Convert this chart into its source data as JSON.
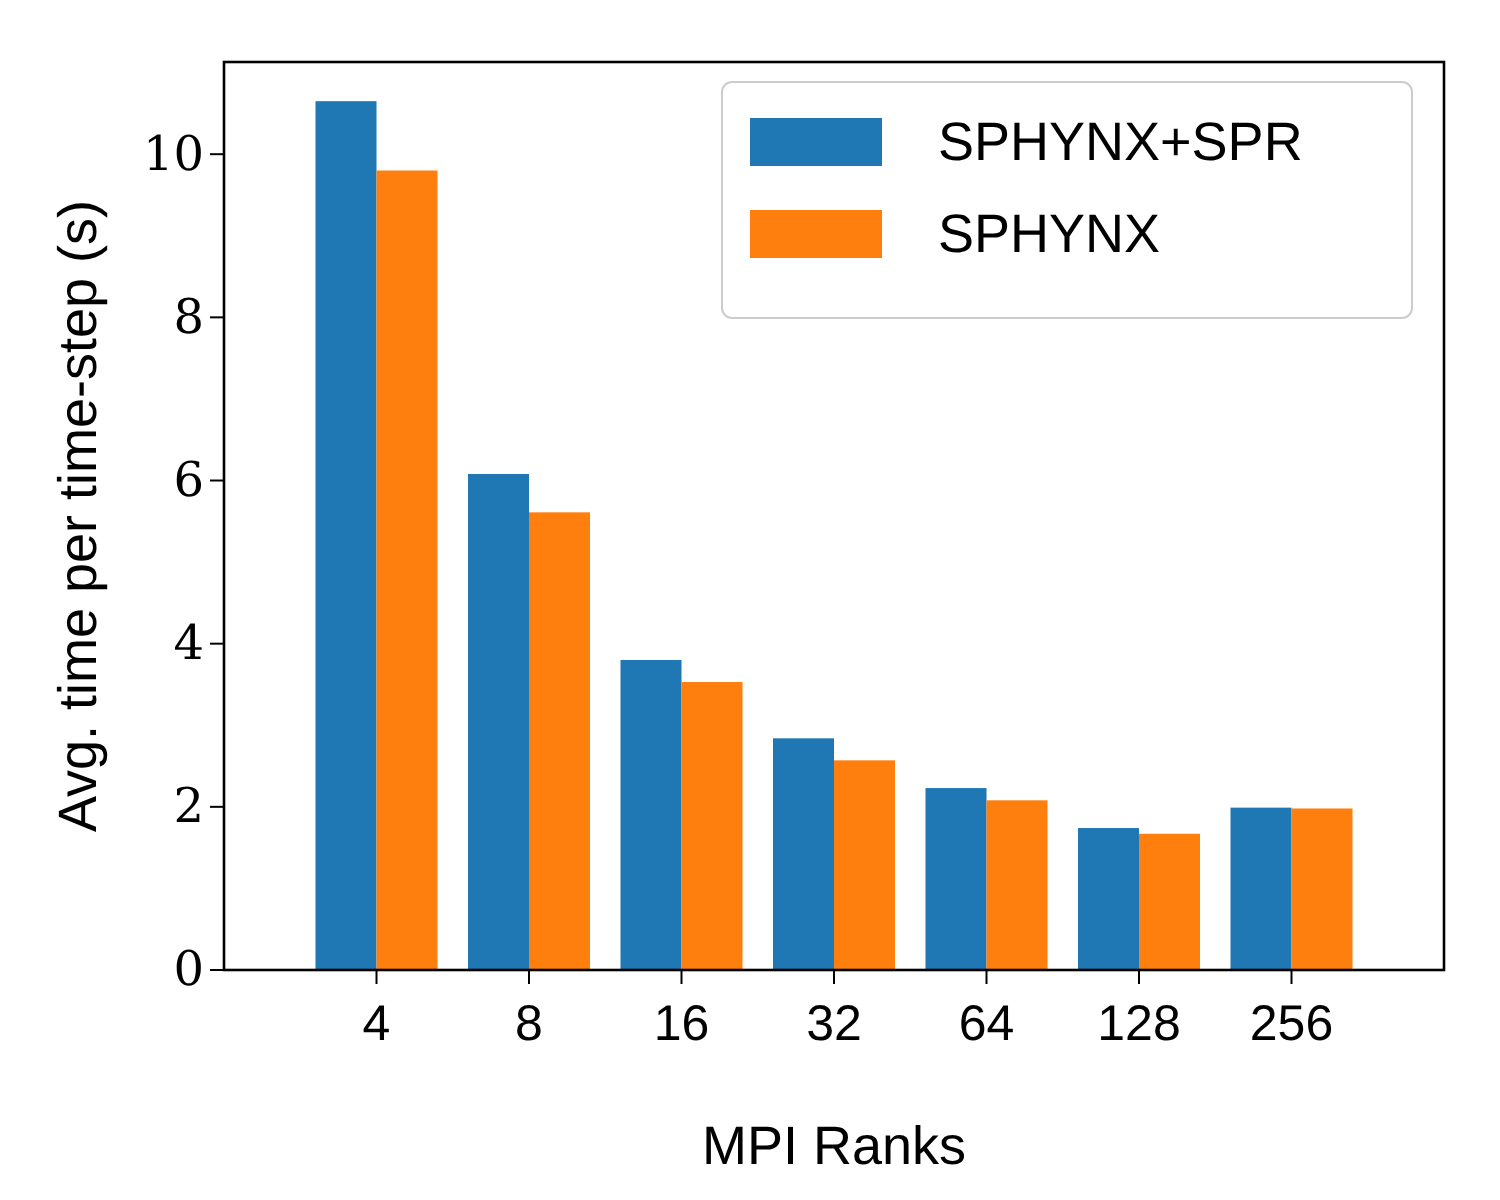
{
  "chart_data": {
    "type": "bar",
    "xlabel": "MPI Ranks",
    "ylabel": "Avg. time per time-step (s)",
    "categories": [
      "4",
      "8",
      "16",
      "32",
      "64",
      "128",
      "256"
    ],
    "series": [
      {
        "name": "SPHYNX+SPR",
        "color": "#1f77b4",
        "values": [
          10.65,
          6.08,
          3.8,
          2.84,
          2.23,
          1.74,
          1.99
        ]
      },
      {
        "name": "SPHYNX",
        "color": "#ff7f0e",
        "values": [
          9.8,
          5.61,
          3.53,
          2.57,
          2.08,
          1.67,
          1.98
        ]
      }
    ],
    "ylim": [
      0,
      11.13
    ],
    "yticks": [
      0,
      2,
      4,
      6,
      8,
      10
    ],
    "legend": "top right",
    "grid": false
  }
}
